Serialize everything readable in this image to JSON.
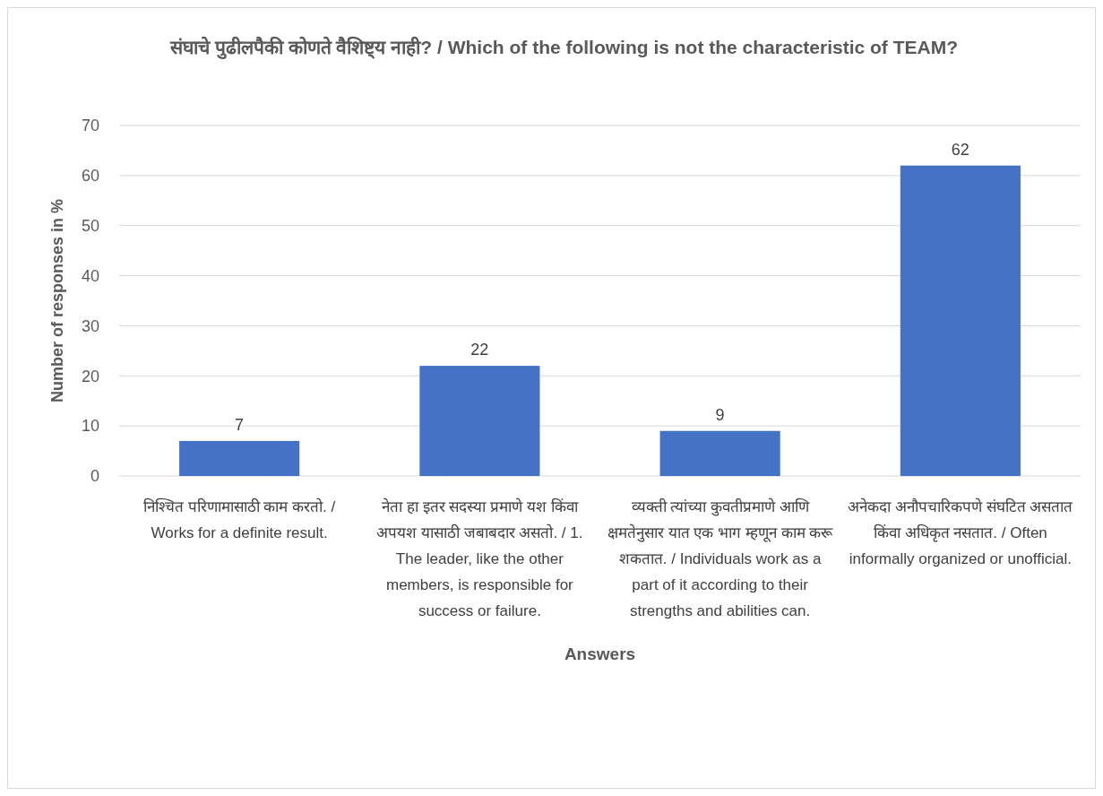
{
  "chart_data": {
    "type": "bar",
    "title": "संघाचे पुढीलपैकी कोणते वैशिष्ट्य नाही?  / Which of the following is not the characteristic of TEAM?",
    "xlabel": "Answers",
    "ylabel": "Number of responses in %",
    "categories": [
      "निश्चित परिणामासाठी काम करतो.  / Works for a definite result.",
      "नेता हा इतर सदस्या प्रमाणे यश किंवा अपयश यासाठी जबाबदार असतो. / 1. The leader, like the other members, is responsible for success or failure.",
      "व्यक्ती त्यांच्या कुवतीप्रमाणे आणि क्षमतेनुसार यात एक भाग म्हणून काम करू शकतात. / Individuals work as a part of it according to their strengths and abilities can.",
      "अनेकदा अनौपचारिकपणे संघटित असतात किंवा अधिकृत नसतात. / Often informally organized or unofficial."
    ],
    "values": [
      7,
      22,
      9,
      62
    ],
    "color": "#4472c4",
    "ylim": [
      0,
      70
    ],
    "yticks": [
      0,
      10,
      20,
      30,
      40,
      50,
      60,
      70
    ],
    "grid": "y",
    "data_labels": true
  }
}
